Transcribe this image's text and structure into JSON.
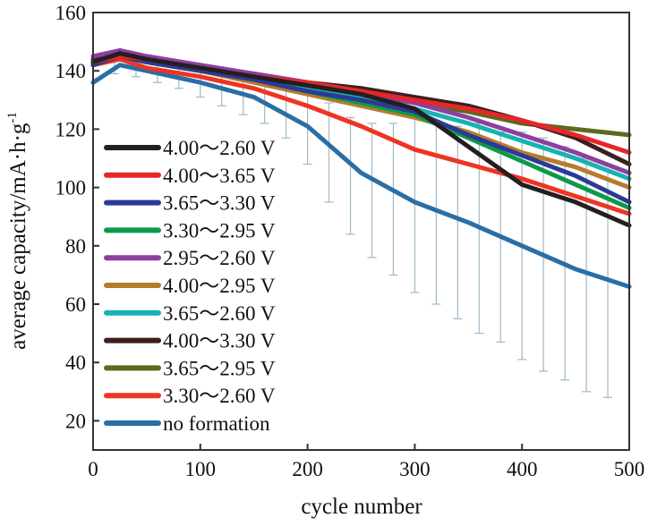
{
  "chart_data": {
    "type": "line",
    "title": "",
    "xlabel": "cycle number",
    "ylabel": "average capacity/mA·h·g",
    "ylabel_superscript": "-1",
    "xlim": [
      0,
      500
    ],
    "ylim": [
      10,
      160
    ],
    "xticks": [
      0,
      100,
      200,
      300,
      400,
      500
    ],
    "yticks": [
      20,
      40,
      60,
      80,
      100,
      120,
      140,
      160
    ],
    "grid": false,
    "legend_position": "bottom-left",
    "x": [
      0,
      25,
      50,
      100,
      150,
      200,
      250,
      300,
      350,
      400,
      450,
      500
    ],
    "series": [
      {
        "name": "4.00～2.60 V",
        "color": "#231f20",
        "values": [
          143,
          146,
          144,
          141,
          138,
          135,
          132,
          127,
          114,
          101,
          95,
          87
        ]
      },
      {
        "name": "4.00～3.65 V",
        "color": "#e8262a",
        "values": [
          143,
          145,
          144,
          141,
          138,
          136,
          133,
          130,
          127,
          123,
          118,
          112
        ]
      },
      {
        "name": "3.65～3.30 V",
        "color": "#2b3a96",
        "values": [
          142,
          145,
          143,
          140,
          137,
          133,
          130,
          126,
          118,
          111,
          104,
          95
        ]
      },
      {
        "name": "3.30～2.95 V",
        "color": "#0c9a4a",
        "values": [
          142,
          145,
          143,
          140,
          137,
          133,
          129,
          125,
          117,
          109,
          101,
          93
        ]
      },
      {
        "name": "2.95～2.60 V",
        "color": "#8e3fa0",
        "values": [
          145,
          147,
          145,
          142,
          139,
          136,
          133,
          129,
          124,
          118,
          112,
          105
        ]
      },
      {
        "name": "4.00～2.95 V",
        "color": "#b57c2a",
        "values": [
          142,
          145,
          143,
          140,
          136,
          132,
          128,
          124,
          119,
          112,
          107,
          100
        ]
      },
      {
        "name": "3.65～2.60 V",
        "color": "#17b3b0",
        "values": [
          143,
          145,
          143,
          140,
          137,
          134,
          131,
          127,
          122,
          116,
          110,
          103
        ]
      },
      {
        "name": "4.00～3.30 V",
        "color": "#3d1f1f",
        "values": [
          144,
          146,
          144,
          141,
          139,
          136,
          134,
          131,
          128,
          123,
          117,
          108
        ]
      },
      {
        "name": "3.65～2.95 V",
        "color": "#5a6b1c",
        "values": [
          143,
          145,
          144,
          141,
          138,
          135,
          132,
          129,
          126,
          122,
          120,
          118
        ]
      },
      {
        "name": "3.30～2.60 V",
        "color": "#ee3524",
        "values": [
          142,
          144,
          141,
          138,
          134,
          128,
          121,
          113,
          108,
          103,
          97,
          91
        ]
      },
      {
        "name": "no formation",
        "color": "#2a6ea6",
        "values": [
          136,
          142,
          140,
          136,
          131,
          121,
          105,
          95,
          88,
          80,
          72,
          66
        ]
      }
    ],
    "error_bars": {
      "series": "no formation",
      "color": "#9fb8c8",
      "x": [
        20,
        40,
        60,
        80,
        100,
        120,
        140,
        160,
        180,
        200,
        220,
        240,
        260,
        280,
        300,
        320,
        340,
        360,
        380,
        400,
        420,
        440,
        460,
        480
      ],
      "value": [
        142,
        141,
        140,
        138,
        136,
        134,
        132,
        130,
        127,
        121,
        112,
        104,
        99,
        96,
        94,
        91,
        88,
        86,
        83,
        80,
        77,
        74,
        70,
        67
      ],
      "error": [
        3,
        3,
        4,
        4,
        5,
        6,
        7,
        8,
        10,
        13,
        17,
        20,
        23,
        26,
        30,
        31,
        33,
        36,
        36,
        39,
        40,
        40,
        40,
        39
      ]
    }
  }
}
